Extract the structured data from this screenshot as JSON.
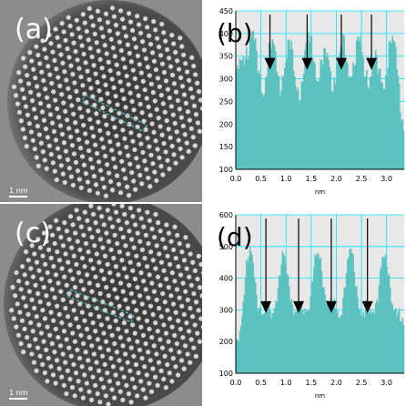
{
  "panels": {
    "a": {
      "label": "(a)",
      "scale_bar": "1 nm"
    },
    "b": {
      "label": "(b)"
    },
    "c": {
      "label": "(c)",
      "scale_bar": "1 nm"
    },
    "d": {
      "label": "(d)"
    }
  },
  "colors": {
    "fill": "#5cc2c0",
    "grid": "#00e5ff",
    "plot_bg": "#e8e8e8",
    "arrow": "#000000"
  },
  "chart_data": [
    {
      "panel": "b",
      "type": "area",
      "xlabel": "nm",
      "ylabel": "",
      "xlim": [
        0,
        3.35
      ],
      "ylim": [
        100,
        450
      ],
      "xticks": [
        "0.0",
        "0.5",
        "1.0",
        "1.5",
        "2.0",
        "2.5",
        "3.0"
      ],
      "xtick_values": [
        0,
        0.5,
        1.0,
        1.5,
        2.0,
        2.5,
        3.0
      ],
      "yticks": [
        "100",
        "150",
        "200",
        "250",
        "300",
        "350",
        "400",
        "450"
      ],
      "ytick_values": [
        100,
        150,
        200,
        250,
        300,
        350,
        400,
        450
      ],
      "grid": true,
      "peaks": [
        {
          "x": 0.08,
          "y": 330
        },
        {
          "x": 0.35,
          "y": 390
        },
        {
          "x": 0.72,
          "y": 385
        },
        {
          "x": 1.07,
          "y": 380
        },
        {
          "x": 1.45,
          "y": 400
        },
        {
          "x": 1.78,
          "y": 360
        },
        {
          "x": 2.12,
          "y": 380
        },
        {
          "x": 2.45,
          "y": 385
        },
        {
          "x": 2.78,
          "y": 345
        },
        {
          "x": 3.12,
          "y": 395
        }
      ],
      "baseline": 150,
      "arrows_x": [
        0.68,
        1.42,
        2.1,
        2.7
      ],
      "arrow_tip_y": 320
    },
    {
      "panel": "d",
      "type": "area",
      "xlabel": "nm",
      "ylabel": "",
      "xlim": [
        0,
        3.35
      ],
      "ylim": [
        100,
        600
      ],
      "xticks": [
        "0.0",
        "0.5",
        "1.0",
        "1.5",
        "2.0",
        "2.5",
        "3.0"
      ],
      "xtick_values": [
        0,
        0.5,
        1.0,
        1.5,
        2.0,
        2.5,
        3.0
      ],
      "yticks": [
        "100",
        "200",
        "300",
        "400",
        "500",
        "600"
      ],
      "ytick_values": [
        100,
        200,
        300,
        400,
        500,
        600
      ],
      "grid": true,
      "peaks": [
        {
          "x": 0.28,
          "y": 490
        },
        {
          "x": 0.62,
          "y": 300
        },
        {
          "x": 0.95,
          "y": 470
        },
        {
          "x": 1.28,
          "y": 310
        },
        {
          "x": 1.62,
          "y": 480
        },
        {
          "x": 1.92,
          "y": 315
        },
        {
          "x": 2.28,
          "y": 490
        },
        {
          "x": 2.62,
          "y": 300
        },
        {
          "x": 2.95,
          "y": 470
        },
        {
          "x": 3.25,
          "y": 280
        }
      ],
      "baseline": 170,
      "arrows_x": [
        0.6,
        1.25,
        1.9,
        2.62
      ],
      "arrow_tip_y": 290
    }
  ]
}
